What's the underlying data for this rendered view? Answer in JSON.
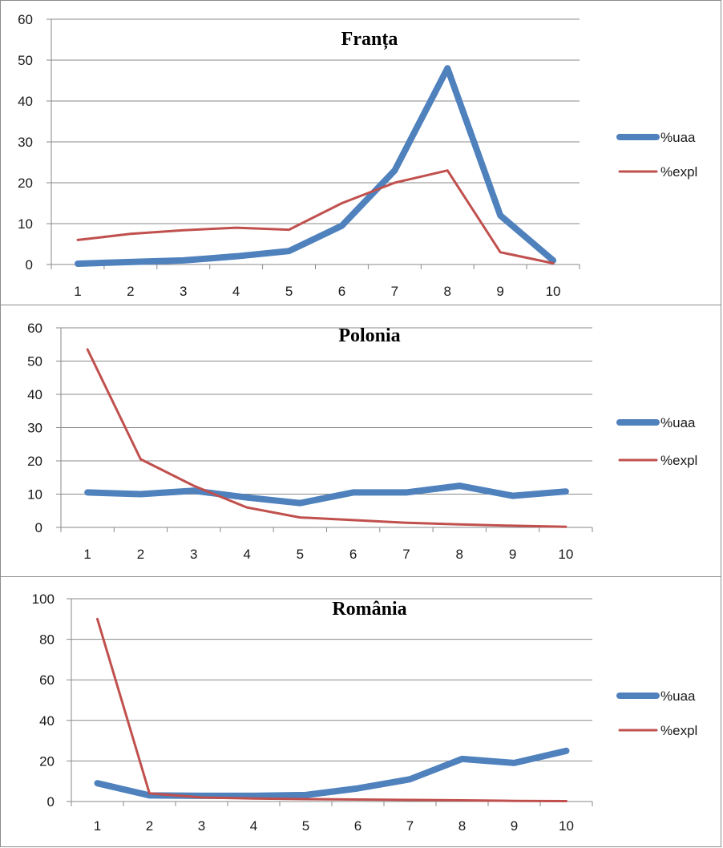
{
  "chart_data": [
    {
      "type": "line",
      "title": "Franța",
      "categories": [
        "1",
        "2",
        "3",
        "4",
        "5",
        "6",
        "7",
        "8",
        "9",
        "10"
      ],
      "ylim": [
        0,
        60
      ],
      "yticks": [
        0,
        10,
        20,
        30,
        40,
        50,
        60
      ],
      "grid": true,
      "legend_position": "right",
      "series": [
        {
          "name": "%uaa",
          "color": "#4f81bd",
          "values": [
            0.2,
            0.6,
            1.0,
            2.0,
            3.3,
            9.5,
            23,
            48,
            12,
            1
          ]
        },
        {
          "name": "%expl",
          "color": "#c0504d",
          "values": [
            6,
            7.5,
            8.4,
            9,
            8.5,
            15,
            20,
            23,
            3,
            0.3
          ]
        }
      ]
    },
    {
      "type": "line",
      "title": "Polonia",
      "categories": [
        "1",
        "2",
        "3",
        "4",
        "5",
        "6",
        "7",
        "8",
        "9",
        "10"
      ],
      "ylim": [
        0,
        60
      ],
      "yticks": [
        0,
        10,
        20,
        30,
        40,
        50,
        60
      ],
      "grid": true,
      "legend_position": "right",
      "series": [
        {
          "name": "%uaa",
          "color": "#4f81bd",
          "values": [
            10.5,
            10,
            11,
            9,
            7.3,
            10.5,
            10.5,
            12.5,
            9.5,
            10.8
          ]
        },
        {
          "name": "%expl",
          "color": "#c0504d",
          "values": [
            53.5,
            20.5,
            12.5,
            6,
            3,
            2.2,
            1.4,
            0.9,
            0.5,
            0.2
          ]
        }
      ]
    },
    {
      "type": "line",
      "title": "România",
      "categories": [
        "1",
        "2",
        "3",
        "4",
        "5",
        "6",
        "7",
        "8",
        "9",
        "10"
      ],
      "ylim": [
        0,
        100
      ],
      "yticks": [
        0,
        20,
        40,
        60,
        80,
        100
      ],
      "grid": true,
      "legend_position": "right",
      "series": [
        {
          "name": "%uaa",
          "color": "#4f81bd",
          "values": [
            9,
            3,
            2.8,
            2.8,
            3.2,
            6.5,
            11,
            21,
            19,
            25
          ]
        },
        {
          "name": "%expl",
          "color": "#c0504d",
          "values": [
            90,
            4,
            2,
            1.5,
            1.2,
            1,
            0.8,
            0.6,
            0.3,
            0.2
          ]
        }
      ]
    }
  ]
}
